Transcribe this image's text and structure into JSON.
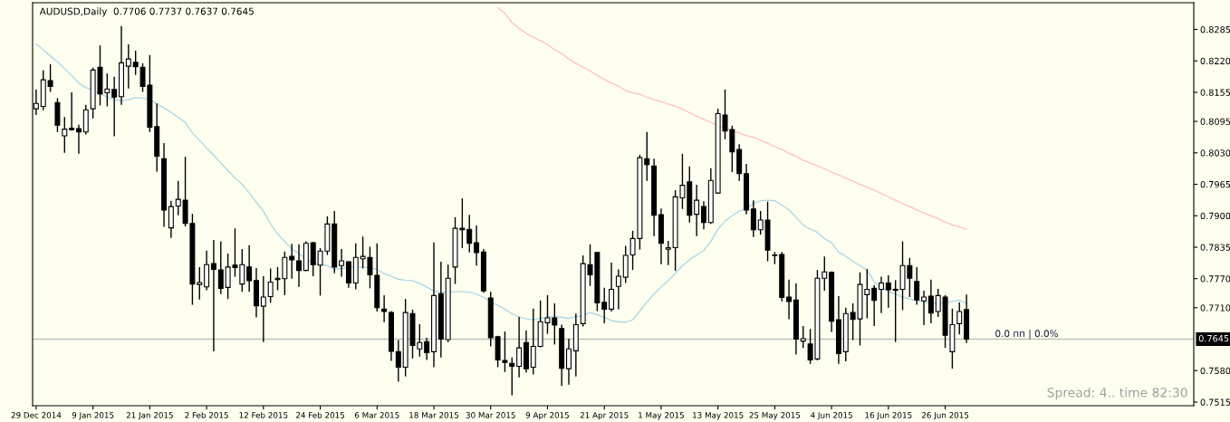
{
  "chart_data": {
    "type": "candlestick",
    "title": "AUDUSD,Daily  0.7706 0.7737 0.7637 0.7645",
    "categories": [
      "29 Dec 2014",
      null,
      null,
      null,
      null,
      null,
      null,
      null,
      "9 Jan 2015",
      null,
      null,
      null,
      null,
      null,
      null,
      null,
      "21 Jan 2015",
      null,
      null,
      null,
      null,
      null,
      null,
      null,
      "2 Feb 2015",
      null,
      null,
      null,
      null,
      null,
      null,
      null,
      "12 Feb 2015",
      null,
      null,
      null,
      null,
      null,
      null,
      null,
      "24 Feb 2015",
      null,
      null,
      null,
      null,
      null,
      null,
      null,
      "6 Mar 2015",
      null,
      null,
      null,
      null,
      null,
      null,
      null,
      "18 Mar 2015",
      null,
      null,
      null,
      null,
      null,
      null,
      null,
      "30 Mar 2015",
      null,
      null,
      null,
      null,
      null,
      null,
      null,
      "9 Apr 2015",
      null,
      null,
      null,
      null,
      null,
      null,
      null,
      "21 Apr 2015",
      null,
      null,
      null,
      null,
      null,
      null,
      null,
      "1 May 2015",
      null,
      null,
      null,
      null,
      null,
      null,
      null,
      "13 May 2015",
      null,
      null,
      null,
      null,
      null,
      null,
      null,
      "25 May 2015",
      null,
      null,
      null,
      null,
      null,
      null,
      null,
      "4 Jun 2015",
      null,
      null,
      null,
      null,
      null,
      null,
      null,
      "16 Jun 2015",
      null,
      null,
      null,
      null,
      null,
      null,
      null,
      "26 Jun 2015",
      null,
      null,
      null
    ],
    "ohlc": [
      [
        0.8121,
        0.8161,
        0.8108,
        0.8132
      ],
      [
        0.8126,
        0.8201,
        0.8118,
        0.8181
      ],
      [
        0.8179,
        0.8213,
        0.8156,
        0.8167
      ],
      [
        0.8134,
        0.8143,
        0.8073,
        0.8087
      ],
      [
        0.8065,
        0.8104,
        0.803,
        0.8079
      ],
      [
        0.8081,
        0.8155,
        0.8076,
        0.8078
      ],
      [
        0.808,
        0.8088,
        0.8028,
        0.8073
      ],
      [
        0.8073,
        0.8129,
        0.8068,
        0.8119
      ],
      [
        0.8121,
        0.8206,
        0.8101,
        0.8201
      ],
      [
        0.8207,
        0.8252,
        0.8128,
        0.8152
      ],
      [
        0.8154,
        0.8194,
        0.8126,
        0.8162
      ],
      [
        0.8161,
        0.8187,
        0.8064,
        0.8145
      ],
      [
        0.8146,
        0.8292,
        0.8129,
        0.8216
      ],
      [
        0.8209,
        0.8254,
        0.8163,
        0.8224
      ],
      [
        0.8217,
        0.8241,
        0.8191,
        0.8208
      ],
      [
        0.8207,
        0.8215,
        0.8156,
        0.8167
      ],
      [
        0.817,
        0.8232,
        0.8073,
        0.8083
      ],
      [
        0.8084,
        0.8132,
        0.7991,
        0.8023
      ],
      [
        0.8018,
        0.805,
        0.7877,
        0.7912
      ],
      [
        0.7875,
        0.7931,
        0.7854,
        0.7919
      ],
      [
        0.792,
        0.7972,
        0.7901,
        0.7934
      ],
      [
        0.7932,
        0.8022,
        0.7878,
        0.7884
      ],
      [
        0.7884,
        0.7904,
        0.7716,
        0.7759
      ],
      [
        0.7758,
        0.7794,
        0.7727,
        0.7762
      ],
      [
        0.7753,
        0.7828,
        0.7746,
        0.7799
      ],
      [
        0.7801,
        0.785,
        0.762,
        0.7789
      ],
      [
        0.7788,
        0.7847,
        0.7738,
        0.775
      ],
      [
        0.7752,
        0.7822,
        0.7728,
        0.7794
      ],
      [
        0.7798,
        0.7874,
        0.7774,
        0.7793
      ],
      [
        0.7759,
        0.7831,
        0.7743,
        0.7799
      ],
      [
        0.7794,
        0.7839,
        0.7743,
        0.7766
      ],
      [
        0.7766,
        0.7792,
        0.769,
        0.7714
      ],
      [
        0.7713,
        0.7775,
        0.7639,
        0.7732
      ],
      [
        0.7733,
        0.7791,
        0.772,
        0.7763
      ],
      [
        0.7771,
        0.7794,
        0.7746,
        0.7768
      ],
      [
        0.777,
        0.7826,
        0.7736,
        0.7814
      ],
      [
        0.7816,
        0.7842,
        0.777,
        0.7809
      ],
      [
        0.7807,
        0.7841,
        0.7753,
        0.7787
      ],
      [
        0.7787,
        0.7847,
        0.7786,
        0.7843
      ],
      [
        0.7844,
        0.7846,
        0.7775,
        0.7799
      ],
      [
        0.7798,
        0.7833,
        0.7735,
        0.7827
      ],
      [
        0.7827,
        0.7899,
        0.7819,
        0.7883
      ],
      [
        0.7883,
        0.791,
        0.7781,
        0.7794
      ],
      [
        0.7797,
        0.7831,
        0.7774,
        0.7807
      ],
      [
        0.7805,
        0.7806,
        0.7751,
        0.7761
      ],
      [
        0.7761,
        0.7843,
        0.7748,
        0.7814
      ],
      [
        0.7811,
        0.7857,
        0.7791,
        0.7816
      ],
      [
        0.7814,
        0.7836,
        0.775,
        0.7778
      ],
      [
        0.7777,
        0.7843,
        0.7702,
        0.771
      ],
      [
        0.7707,
        0.7736,
        0.768,
        0.7702
      ],
      [
        0.77,
        0.7703,
        0.76,
        0.762
      ],
      [
        0.7619,
        0.7643,
        0.7557,
        0.7587
      ],
      [
        0.7587,
        0.7728,
        0.7568,
        0.77
      ],
      [
        0.7698,
        0.7706,
        0.7605,
        0.7632
      ],
      [
        0.7625,
        0.7676,
        0.7609,
        0.7638
      ],
      [
        0.764,
        0.7648,
        0.7602,
        0.7617
      ],
      [
        0.7619,
        0.7845,
        0.7587,
        0.7735
      ],
      [
        0.7739,
        0.7805,
        0.7607,
        0.7645
      ],
      [
        0.7644,
        0.7799,
        0.7639,
        0.7771
      ],
      [
        0.7794,
        0.7897,
        0.7759,
        0.7874
      ],
      [
        0.7874,
        0.7936,
        0.7833,
        0.7871
      ],
      [
        0.7872,
        0.7902,
        0.7824,
        0.7843
      ],
      [
        0.7844,
        0.788,
        0.7797,
        0.7824
      ],
      [
        0.7825,
        0.7831,
        0.7741,
        0.7745
      ],
      [
        0.773,
        0.7743,
        0.763,
        0.7648
      ],
      [
        0.765,
        0.7652,
        0.7587,
        0.7602
      ],
      [
        0.7601,
        0.7661,
        0.7577,
        0.7597
      ],
      [
        0.7595,
        0.7607,
        0.7529,
        0.7589
      ],
      [
        0.7589,
        0.7691,
        0.7566,
        0.7627
      ],
      [
        0.7638,
        0.7663,
        0.7576,
        0.7584
      ],
      [
        0.7587,
        0.7708,
        0.7572,
        0.763
      ],
      [
        0.763,
        0.7725,
        0.7628,
        0.7681
      ],
      [
        0.7679,
        0.7736,
        0.7656,
        0.7689
      ],
      [
        0.7689,
        0.7719,
        0.7634,
        0.7674
      ],
      [
        0.7667,
        0.7675,
        0.7548,
        0.7585
      ],
      [
        0.7584,
        0.7646,
        0.7551,
        0.7625
      ],
      [
        0.7621,
        0.7698,
        0.7568,
        0.7675
      ],
      [
        0.7677,
        0.7818,
        0.7671,
        0.7801
      ],
      [
        0.7799,
        0.7841,
        0.7755,
        0.7778
      ],
      [
        0.7824,
        0.7825,
        0.7703,
        0.772
      ],
      [
        0.7721,
        0.7751,
        0.7678,
        0.7707
      ],
      [
        0.7707,
        0.7803,
        0.7702,
        0.7748
      ],
      [
        0.7754,
        0.7789,
        0.7707,
        0.7775
      ],
      [
        0.7773,
        0.7838,
        0.7761,
        0.7818
      ],
      [
        0.7819,
        0.7869,
        0.7788,
        0.7853
      ],
      [
        0.7853,
        0.8026,
        0.783,
        0.802
      ],
      [
        0.8018,
        0.8073,
        0.7972,
        0.8006
      ],
      [
        0.8003,
        0.8018,
        0.7858,
        0.7901
      ],
      [
        0.7902,
        0.7915,
        0.78,
        0.7843
      ],
      [
        0.7831,
        0.7848,
        0.7798,
        0.7834
      ],
      [
        0.7834,
        0.7953,
        0.7786,
        0.7939
      ],
      [
        0.7937,
        0.8028,
        0.7914,
        0.7963
      ],
      [
        0.797,
        0.8002,
        0.7886,
        0.7901
      ],
      [
        0.7903,
        0.7964,
        0.7858,
        0.7932
      ],
      [
        0.7919,
        0.793,
        0.7872,
        0.7886
      ],
      [
        0.7886,
        0.7998,
        0.7883,
        0.7973
      ],
      [
        0.7947,
        0.8121,
        0.7945,
        0.8111
      ],
      [
        0.8108,
        0.8161,
        0.8058,
        0.8075
      ],
      [
        0.8078,
        0.8086,
        0.799,
        0.8032
      ],
      [
        0.8037,
        0.8048,
        0.7972,
        0.7987
      ],
      [
        0.7987,
        0.8007,
        0.7903,
        0.7912
      ],
      [
        0.7914,
        0.7932,
        0.7856,
        0.7871
      ],
      [
        0.7871,
        0.791,
        0.7861,
        0.7891
      ],
      [
        0.7891,
        0.7929,
        0.7806,
        0.7829
      ],
      [
        0.7819,
        0.7825,
        0.78,
        0.7818
      ],
      [
        0.782,
        0.7825,
        0.7723,
        0.7731
      ],
      [
        0.7732,
        0.7768,
        0.7686,
        0.7723
      ],
      [
        0.7726,
        0.776,
        0.7613,
        0.7645
      ],
      [
        0.7641,
        0.7672,
        0.7627,
        0.7646
      ],
      [
        0.7635,
        0.7666,
        0.7594,
        0.7602
      ],
      [
        0.7604,
        0.7788,
        0.7601,
        0.7771
      ],
      [
        0.7771,
        0.7816,
        0.7745,
        0.7784
      ],
      [
        0.7783,
        0.7785,
        0.766,
        0.7682
      ],
      [
        0.7685,
        0.7734,
        0.7594,
        0.7615
      ],
      [
        0.7619,
        0.771,
        0.7599,
        0.7698
      ],
      [
        0.77,
        0.7719,
        0.7643,
        0.7686
      ],
      [
        0.7687,
        0.7783,
        0.7632,
        0.7758
      ],
      [
        0.7737,
        0.779,
        0.7688,
        0.7748
      ],
      [
        0.775,
        0.7757,
        0.7672,
        0.7725
      ],
      [
        0.7748,
        0.7774,
        0.7699,
        0.7761
      ],
      [
        0.7761,
        0.7777,
        0.771,
        0.7747
      ],
      [
        0.7748,
        0.7767,
        0.7639,
        0.7746
      ],
      [
        0.7748,
        0.7847,
        0.7705,
        0.7797
      ],
      [
        0.7797,
        0.7813,
        0.7732,
        0.7771
      ],
      [
        0.7764,
        0.7794,
        0.7716,
        0.7726
      ],
      [
        0.7724,
        0.7745,
        0.7674,
        0.7732
      ],
      [
        0.7734,
        0.7768,
        0.7678,
        0.7699
      ],
      [
        0.7702,
        0.7749,
        0.7691,
        0.7735
      ],
      [
        0.7732,
        0.7736,
        0.7627,
        0.7653
      ],
      [
        0.7619,
        0.7708,
        0.7584,
        0.7675
      ],
      [
        0.7677,
        0.7721,
        0.7655,
        0.7702
      ],
      [
        0.7706,
        0.7737,
        0.7637,
        0.7645
      ]
    ],
    "series": [
      {
        "type": "line",
        "color": "#add8e6",
        "values": [
          0.8255,
          0.8243,
          0.823,
          0.8218,
          0.8204,
          0.819,
          0.8174,
          0.8165,
          0.8159,
          0.8152,
          0.8146,
          0.814,
          0.8138,
          0.814,
          0.8144,
          0.8143,
          0.814,
          0.8131,
          0.8123,
          0.8114,
          0.8103,
          0.8093,
          0.8071,
          0.8056,
          0.804,
          0.8025,
          0.8009,
          0.7993,
          0.7978,
          0.7965,
          0.7947,
          0.7928,
          0.7909,
          0.7884,
          0.7862,
          0.7847,
          0.7831,
          0.7822,
          0.7811,
          0.7802,
          0.7799,
          0.7797,
          0.7789,
          0.7791,
          0.7793,
          0.7794,
          0.7794,
          0.7793,
          0.7789,
          0.7781,
          0.7775,
          0.7769,
          0.7767,
          0.7766,
          0.776,
          0.7753,
          0.7744,
          0.7742,
          0.7742,
          0.7743,
          0.7743,
          0.7742,
          0.7738,
          0.7732,
          0.7722,
          0.7715,
          0.7707,
          0.7697,
          0.7691,
          0.7687,
          0.7685,
          0.7688,
          0.7691,
          0.7692,
          0.769,
          0.7688,
          0.7691,
          0.7694,
          0.77,
          0.7696,
          0.769,
          0.7683,
          0.7681,
          0.768,
          0.7685,
          0.7703,
          0.7722,
          0.7738,
          0.7753,
          0.7766,
          0.7781,
          0.7797,
          0.7809,
          0.7819,
          0.7828,
          0.7847,
          0.7872,
          0.7889,
          0.79,
          0.7909,
          0.7915,
          0.7925,
          0.7931,
          0.7932,
          0.7931,
          0.7922,
          0.7912,
          0.7897,
          0.7881,
          0.7872,
          0.7866,
          0.7853,
          0.7844,
          0.7825,
          0.7816,
          0.7806,
          0.7797,
          0.7788,
          0.7763,
          0.7753,
          0.7744,
          0.7738,
          0.7732,
          0.7728,
          0.7725,
          0.7722,
          0.772,
          0.772,
          0.772,
          0.7723,
          0.7725,
          0.7719
        ]
      },
      {
        "type": "line",
        "color": "#ffc0cb",
        "values": [
          null,
          null,
          null,
          null,
          null,
          null,
          null,
          null,
          null,
          null,
          null,
          null,
          null,
          null,
          null,
          null,
          null,
          null,
          null,
          null,
          null,
          null,
          null,
          null,
          null,
          null,
          null,
          null,
          null,
          null,
          null,
          null,
          null,
          null,
          null,
          null,
          null,
          null,
          null,
          null,
          null,
          null,
          null,
          null,
          null,
          null,
          null,
          null,
          null,
          null,
          null,
          null,
          null,
          null,
          null,
          null,
          null,
          null,
          null,
          null,
          null,
          null,
          null,
          null,
          null,
          0.833,
          0.8318,
          0.8299,
          0.8287,
          0.8277,
          0.8269,
          0.8262,
          0.8254,
          0.8243,
          0.8235,
          0.8224,
          0.8215,
          0.8207,
          0.8199,
          0.819,
          0.8182,
          0.8174,
          0.8168,
          0.8159,
          0.8154,
          0.8151,
          0.8145,
          0.814,
          0.8136,
          0.8131,
          0.8126,
          0.812,
          0.8113,
          0.8106,
          0.8099,
          0.8093,
          0.8087,
          0.8081,
          0.8076,
          0.8071,
          0.8066,
          0.8062,
          0.8056,
          0.805,
          0.8043,
          0.8037,
          0.8029,
          0.8023,
          0.8015,
          0.8009,
          0.8003,
          0.7997,
          0.799,
          0.7984,
          0.7978,
          0.7972,
          0.7965,
          0.7959,
          0.7953,
          0.7946,
          0.7939,
          0.7932,
          0.7925,
          0.7919,
          0.7912,
          0.7906,
          0.79,
          0.7894,
          0.7887,
          0.7881,
          0.7877,
          0.7872
        ]
      }
    ],
    "ylim": [
      0.75075,
      0.83402
    ],
    "yticks": [
      {
        "value": 0.8285,
        "label": "0.8285"
      },
      {
        "value": 0.822,
        "label": "0.8220"
      },
      {
        "value": 0.8155,
        "label": "0.8155"
      },
      {
        "value": 0.8095,
        "label": "0.8095"
      },
      {
        "value": 0.803,
        "label": "0.8030"
      },
      {
        "value": 0.7965,
        "label": "0.7965"
      },
      {
        "value": 0.79,
        "label": "0.7900"
      },
      {
        "value": 0.7835,
        "label": "0.7835"
      },
      {
        "value": 0.777,
        "label": "0.7770"
      },
      {
        "value": 0.771,
        "label": "0.7710"
      },
      {
        "value": 0.758,
        "label": "0.7580"
      },
      {
        "value": 0.7515,
        "label": "0.7515"
      }
    ],
    "ref_lines": [
      {
        "axis": "y",
        "value": 0.7645,
        "label": "0.7645",
        "color": "#c0c0c0"
      }
    ],
    "annotations": [
      {
        "text": "0.0 пп | 0.0%",
        "y": 0.7645
      },
      "Spread: 4.. time 82:30"
    ]
  }
}
